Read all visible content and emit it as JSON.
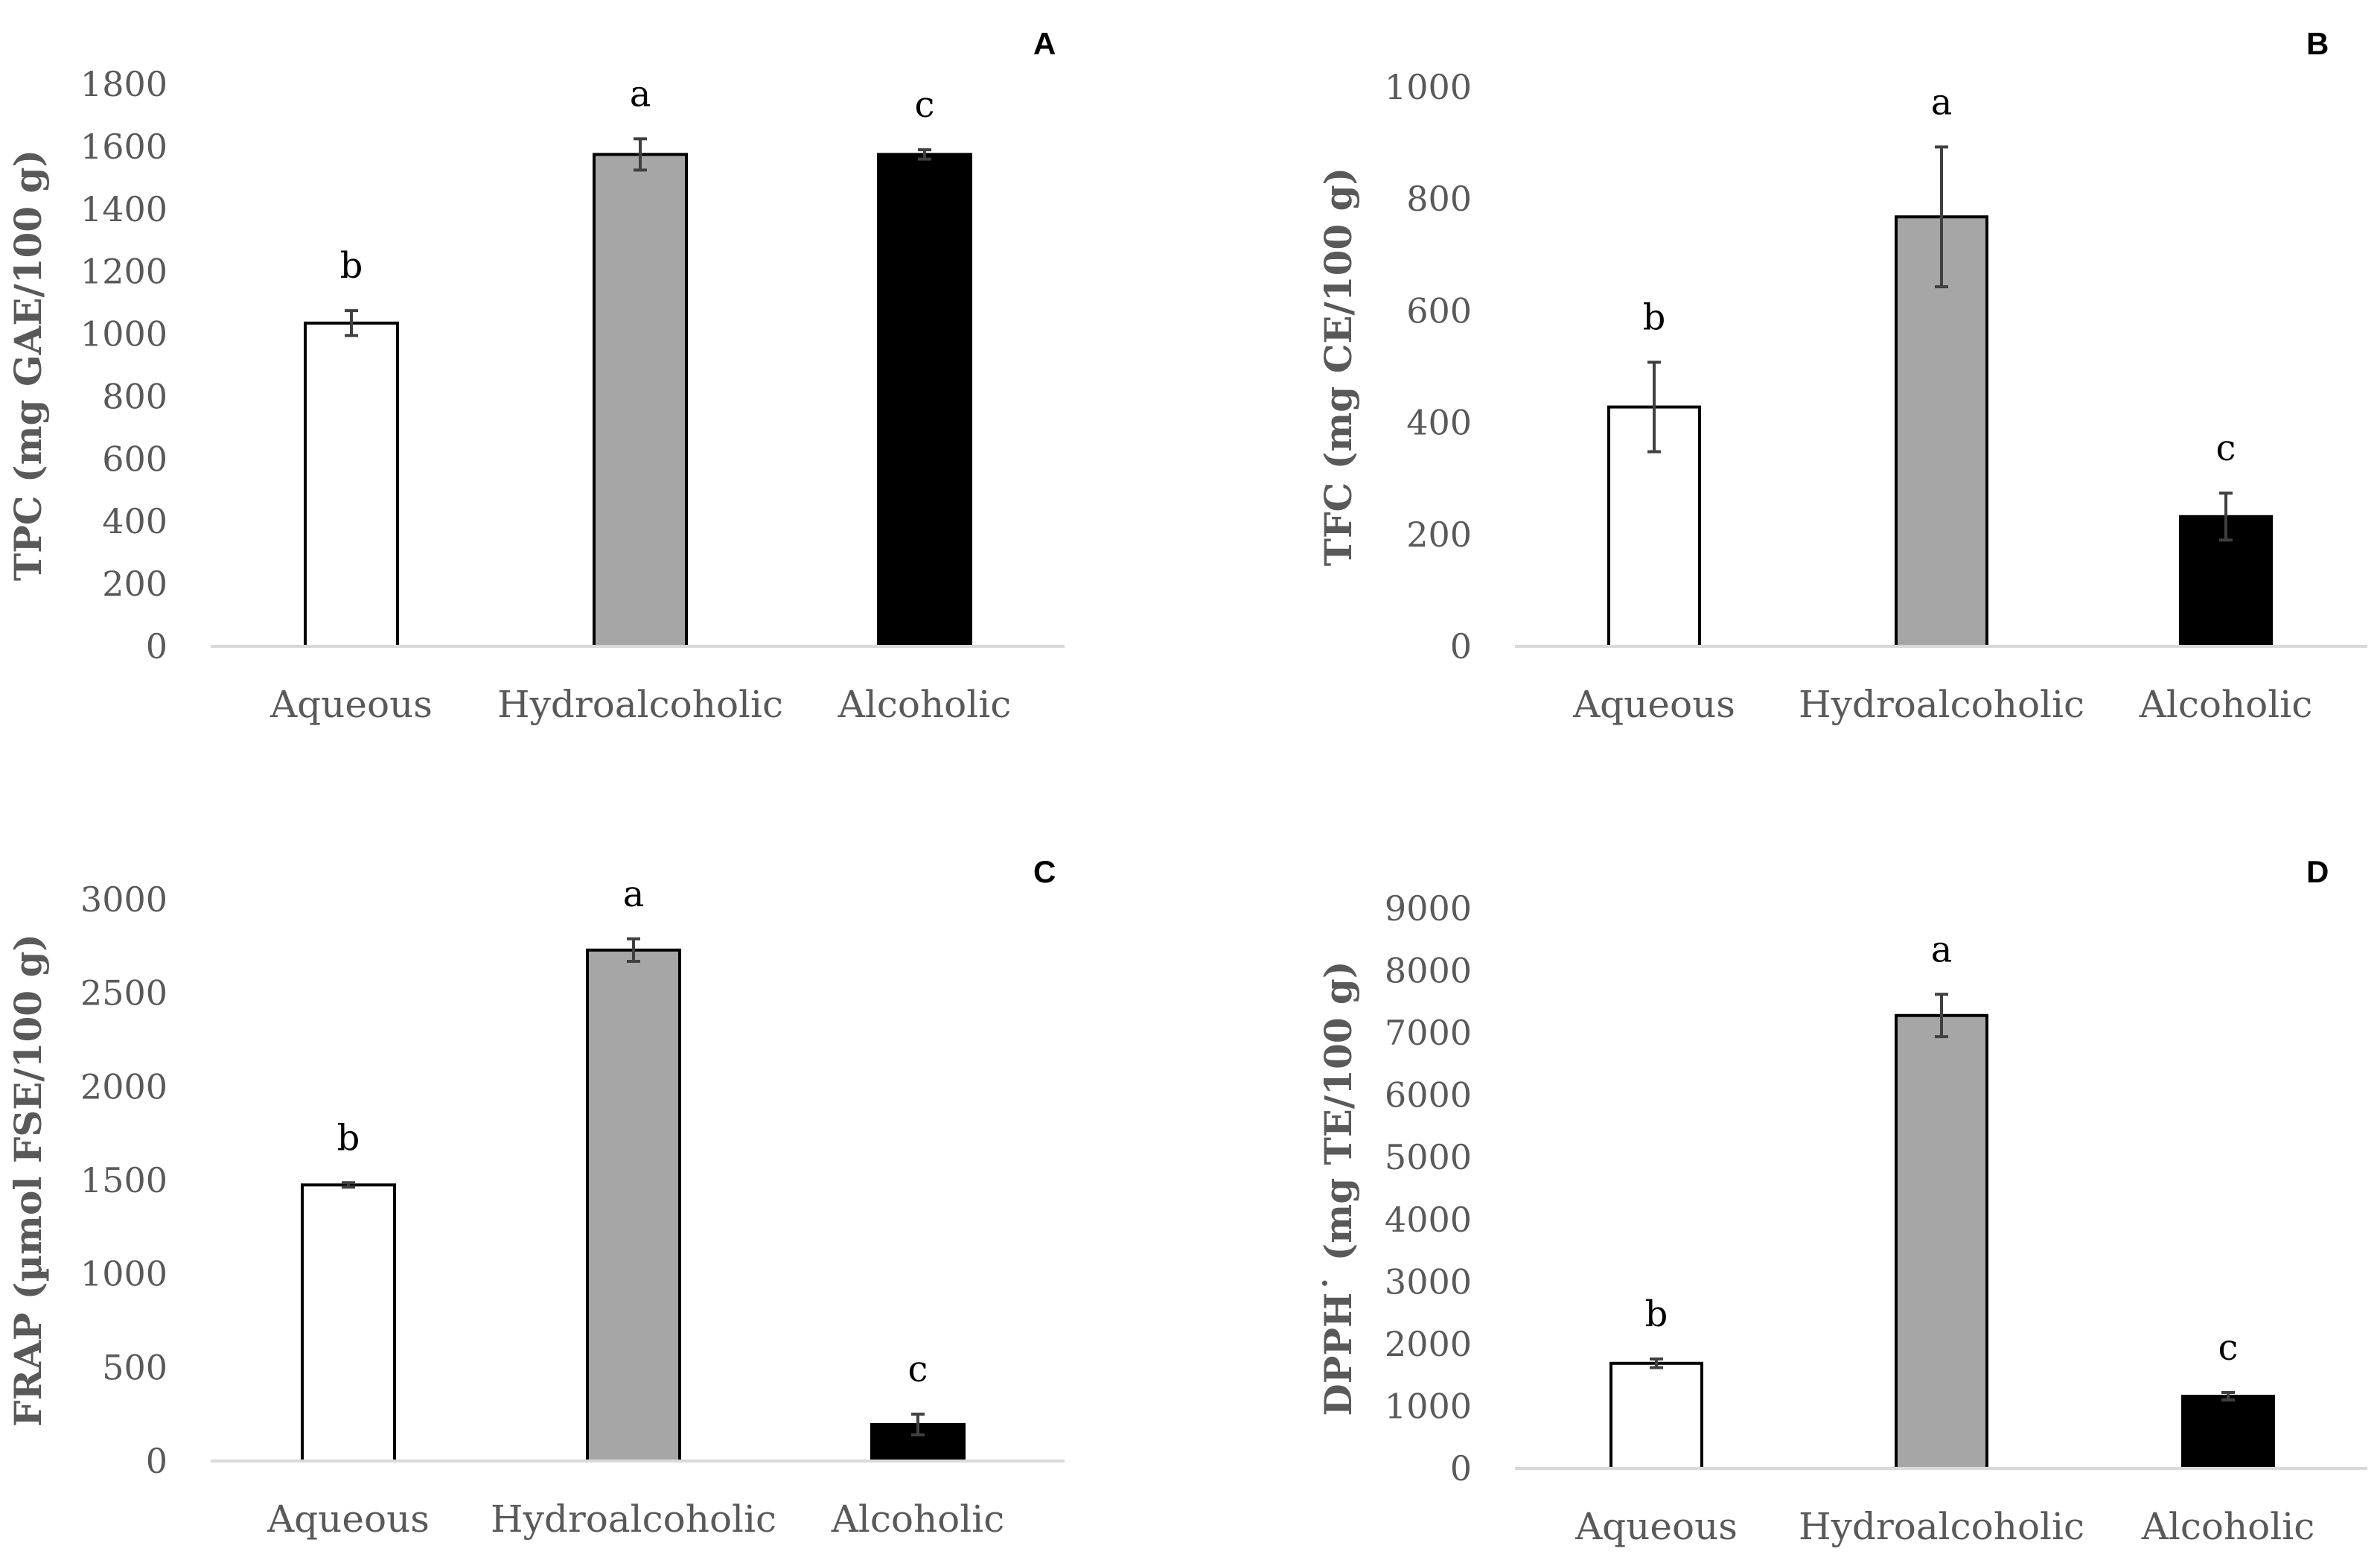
{
  "colors": {
    "bar_fills": [
      "#ffffff",
      "#a6a6a6",
      "#000000"
    ],
    "bar_stroke": "#000000",
    "axis": "#d9d9d9",
    "text": "#595959",
    "error_bar": "#404040"
  },
  "chart_data": [
    {
      "type": "bar",
      "panel": "A",
      "title": "",
      "xlabel": "",
      "ylabel": "TPC (mg GAE/100 g)",
      "categories": [
        "Aqueous",
        "Hydroalcoholic",
        "Alcoholic"
      ],
      "values": [
        1035,
        1575,
        1575
      ],
      "errors": [
        40,
        50,
        15
      ],
      "labels": [
        "b",
        "a",
        "c"
      ],
      "ylim": [
        0,
        1800
      ],
      "yticks": [
        0,
        200,
        400,
        600,
        800,
        1000,
        1200,
        1400,
        1600,
        1800
      ],
      "grid": false
    },
    {
      "type": "bar",
      "panel": "B",
      "title": "",
      "xlabel": "",
      "ylabel": "TFC  (mg CE/100 g)",
      "categories": [
        "Aqueous",
        "Hydroalcoholic",
        "Alcoholic"
      ],
      "values": [
        428,
        768,
        232
      ],
      "errors": [
        80,
        125,
        42
      ],
      "labels": [
        "b",
        "a",
        "c"
      ],
      "ylim": [
        0,
        1000
      ],
      "yticks": [
        0,
        200,
        400,
        600,
        800,
        1000
      ],
      "grid": false
    },
    {
      "type": "bar",
      "panel": "C",
      "title": "",
      "xlabel": "",
      "ylabel": "FRAP  (µmol FSE/100 g)",
      "categories": [
        "Aqueous",
        "Hydroalcoholic",
        "Alcoholic"
      ],
      "values": [
        1475,
        2730,
        195
      ],
      "errors": [
        12,
        60,
        55
      ],
      "labels": [
        "b",
        "a",
        "c"
      ],
      "ylim": [
        0,
        3000
      ],
      "yticks": [
        0,
        500,
        1000,
        1500,
        2000,
        2500,
        3000
      ],
      "grid": false
    },
    {
      "type": "bar",
      "panel": "D",
      "title": "",
      "xlabel": "",
      "ylabel": "DPPH˙ (mg TE/100 g)",
      "categories": [
        "Aqueous",
        "Hydroalcoholic",
        "Alcoholic"
      ],
      "values": [
        1690,
        7280,
        1160
      ],
      "errors": [
        70,
        340,
        60
      ],
      "labels": [
        "b",
        "a",
        "c"
      ],
      "ylim": [
        0,
        9000
      ],
      "yticks": [
        0,
        1000,
        2000,
        3000,
        4000,
        5000,
        6000,
        7000,
        8000,
        9000
      ],
      "grid": false
    }
  ]
}
